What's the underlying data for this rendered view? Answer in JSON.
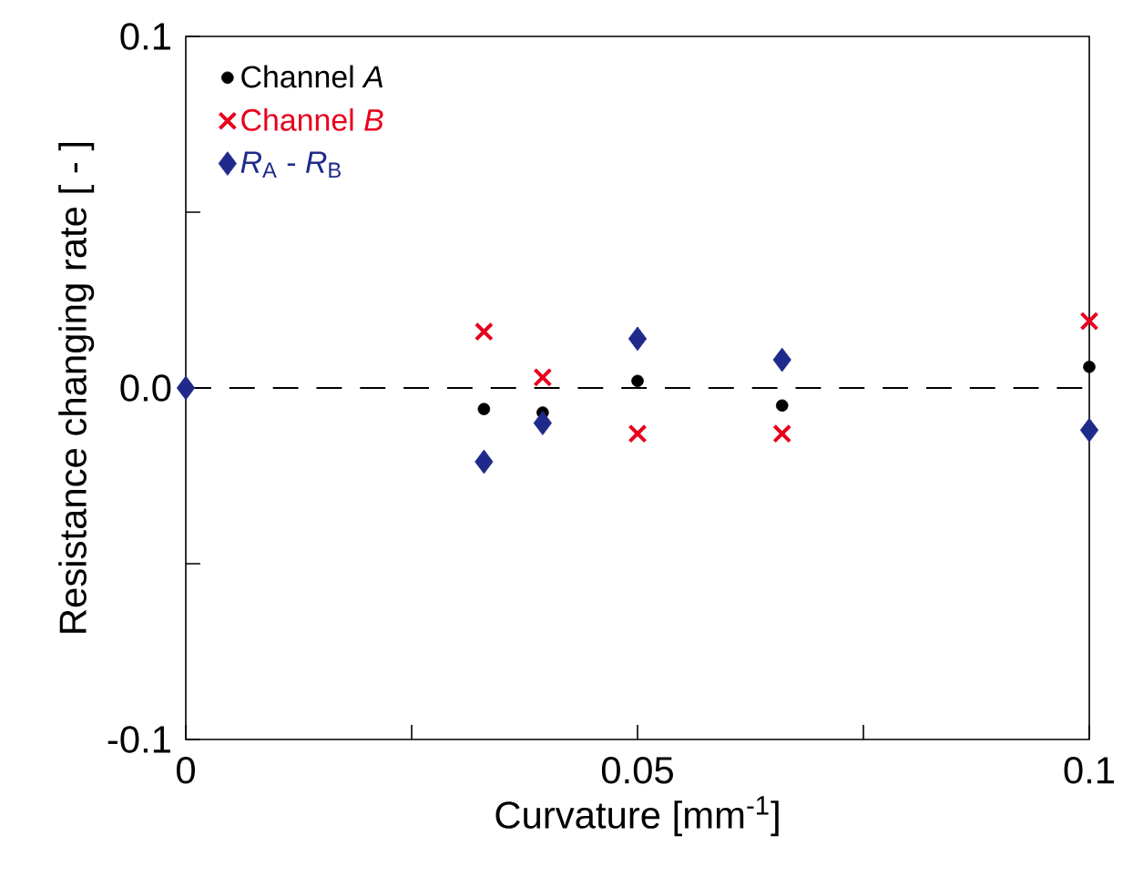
{
  "chart_data": {
    "type": "scatter",
    "xlabel": "Curvature [mm$^{-1}$]",
    "ylabel": "Resistance changing rate [ - ]",
    "xlim": [
      0,
      0.1
    ],
    "ylim": [
      -0.1,
      0.1
    ],
    "xticks": [
      0,
      {
        "value": 0.025,
        "label": null
      },
      0.05,
      {
        "value": 0.075,
        "label": null
      },
      0.1
    ],
    "yticks": [
      -0.1,
      {
        "value": -0.05,
        "label": null
      },
      {
        "value": 0,
        "label": "0.0"
      },
      {
        "value": 0.05,
        "label": null
      },
      0.1
    ],
    "grid": false,
    "legend": "top left",
    "ref_lines": [
      {
        "axis": "y",
        "value": 0,
        "color": "#000000",
        "line_style": "dashed"
      }
    ],
    "series": [
      {
        "name": "Channel *A*",
        "color": "#000000",
        "marker": "circle",
        "x": [
          0.033,
          0.0395,
          0.05,
          0.066,
          0.1
        ],
        "values": [
          -0.006,
          -0.007,
          0.002,
          -0.005,
          0.006
        ]
      },
      {
        "name": "Channel *B*",
        "color": "#e8001c",
        "marker": "cross",
        "x": [
          0.033,
          0.0395,
          0.05,
          0.066,
          0.1
        ],
        "values": [
          0.016,
          0.003,
          -0.013,
          -0.013,
          0.019
        ]
      },
      {
        "name": "*R*$_{A}$ - *R*$_{B}$",
        "color": "#1f2a8a",
        "marker": "diamond",
        "x": [
          0,
          0.033,
          0.0395,
          0.05,
          0.066,
          0.1
        ],
        "values": [
          0,
          -0.021,
          -0.01,
          0.014,
          0.008,
          -0.012
        ]
      }
    ]
  }
}
